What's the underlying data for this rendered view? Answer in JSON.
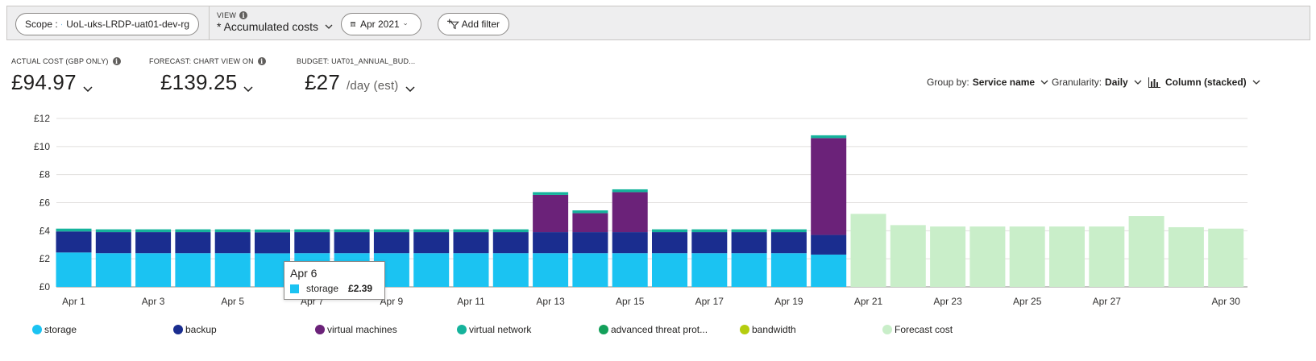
{
  "toolbar": {
    "scope_label": "Scope :",
    "scope_value": "UoL-uks-LRDP-uat01-dev-rg",
    "view_label": "VIEW",
    "view_value": "* Accumulated costs",
    "date_value": "Apr 2021",
    "add_filter_label": "Add filter"
  },
  "kpis": {
    "actual_label": "ACTUAL COST (GBP ONLY)",
    "actual_value": "£94.97",
    "forecast_label": "FORECAST: CHART VIEW ON",
    "forecast_value": "£139.25",
    "budget_label": "BUDGET: UAT01_ANNUAL_BUD...",
    "budget_value": "£27",
    "budget_unit": "/day (est)"
  },
  "controls": {
    "group_by_label": "Group by:",
    "group_by_value": "Service name",
    "granularity_label": "Granularity:",
    "granularity_value": "Daily",
    "chart_type_value": "Column (stacked)"
  },
  "tooltip": {
    "date": "Apr 6",
    "series": "storage",
    "value": "£2.39",
    "color": "#1bc3f2"
  },
  "legend": [
    {
      "label": "storage",
      "color": "#1bc3f2"
    },
    {
      "label": "backup",
      "color": "#1a2d8f"
    },
    {
      "label": "virtual machines",
      "color": "#6b2279"
    },
    {
      "label": "virtual network",
      "color": "#15b39c"
    },
    {
      "label": "advanced threat prot...",
      "color": "#13a05a"
    },
    {
      "label": "bandwidth",
      "color": "#b5cd0f"
    },
    {
      "label": "Forecast cost",
      "color": "#c9eec9"
    }
  ],
  "chart_data": {
    "type": "bar",
    "stacked": true,
    "currency": "GBP",
    "ylim": [
      0,
      12
    ],
    "y_ticks": [
      "£0",
      "£2",
      "£4",
      "£6",
      "£8",
      "£10",
      "£12"
    ],
    "grid": true,
    "x_tick_labels": [
      "Apr 1",
      "Apr 3",
      "Apr 5",
      "Apr 7",
      "Apr 9",
      "Apr 11",
      "Apr 13",
      "Apr 15",
      "Apr 17",
      "Apr 19",
      "Apr 21",
      "Apr 23",
      "Apr 25",
      "Apr 27",
      "Apr 30"
    ],
    "categories": [
      "Apr 1",
      "Apr 2",
      "Apr 3",
      "Apr 4",
      "Apr 5",
      "Apr 6",
      "Apr 7",
      "Apr 8",
      "Apr 9",
      "Apr 10",
      "Apr 11",
      "Apr 12",
      "Apr 13",
      "Apr 14",
      "Apr 15",
      "Apr 16",
      "Apr 17",
      "Apr 18",
      "Apr 19",
      "Apr 20",
      "Apr 21",
      "Apr 22",
      "Apr 23",
      "Apr 24",
      "Apr 25",
      "Apr 26",
      "Apr 27",
      "Apr 28",
      "Apr 29",
      "Apr 30"
    ],
    "series": [
      {
        "name": "storage",
        "color": "#1bc3f2",
        "values": [
          2.45,
          2.4,
          2.4,
          2.4,
          2.4,
          2.39,
          2.4,
          2.4,
          2.4,
          2.4,
          2.4,
          2.4,
          2.4,
          2.4,
          2.4,
          2.4,
          2.4,
          2.4,
          2.4,
          2.3,
          null,
          null,
          null,
          null,
          null,
          null,
          null,
          null,
          null,
          null
        ]
      },
      {
        "name": "backup",
        "color": "#1a2d8f",
        "values": [
          1.5,
          1.5,
          1.5,
          1.5,
          1.5,
          1.5,
          1.5,
          1.5,
          1.5,
          1.5,
          1.5,
          1.5,
          1.5,
          1.5,
          1.5,
          1.5,
          1.5,
          1.5,
          1.5,
          1.4,
          null,
          null,
          null,
          null,
          null,
          null,
          null,
          null,
          null,
          null
        ]
      },
      {
        "name": "virtual machines",
        "color": "#6b2279",
        "values": [
          0,
          0,
          0,
          0,
          0,
          0,
          0,
          0,
          0,
          0,
          0,
          0,
          2.65,
          1.35,
          2.85,
          0,
          0,
          0,
          0,
          6.9,
          null,
          null,
          null,
          null,
          null,
          null,
          null,
          null,
          null,
          null
        ]
      },
      {
        "name": "virtual network",
        "color": "#15b39c",
        "values": [
          0.2,
          0.2,
          0.2,
          0.2,
          0.2,
          0.2,
          0.2,
          0.2,
          0.2,
          0.2,
          0.2,
          0.2,
          0.2,
          0.2,
          0.2,
          0.2,
          0.2,
          0.2,
          0.2,
          0.2,
          null,
          null,
          null,
          null,
          null,
          null,
          null,
          null,
          null,
          null
        ]
      },
      {
        "name": "advanced threat prot...",
        "color": "#13a05a",
        "values": [
          0,
          0,
          0,
          0,
          0,
          0,
          0,
          0,
          0,
          0,
          0,
          0,
          0,
          0,
          0,
          0,
          0,
          0,
          0,
          0,
          null,
          null,
          null,
          null,
          null,
          null,
          null,
          null,
          null,
          null
        ]
      },
      {
        "name": "bandwidth",
        "color": "#b5cd0f",
        "values": [
          0,
          0,
          0,
          0,
          0,
          0,
          0,
          0,
          0,
          0,
          0,
          0,
          0,
          0,
          0,
          0,
          0,
          0,
          0,
          0,
          null,
          null,
          null,
          null,
          null,
          null,
          null,
          null,
          null,
          null
        ]
      },
      {
        "name": "Forecast cost",
        "color": "#c9eec9",
        "values": [
          null,
          null,
          null,
          null,
          null,
          null,
          null,
          null,
          null,
          null,
          null,
          null,
          null,
          null,
          null,
          null,
          null,
          null,
          null,
          null,
          5.2,
          4.4,
          4.3,
          4.3,
          4.3,
          4.3,
          4.3,
          5.05,
          4.25,
          4.15
        ]
      }
    ]
  }
}
